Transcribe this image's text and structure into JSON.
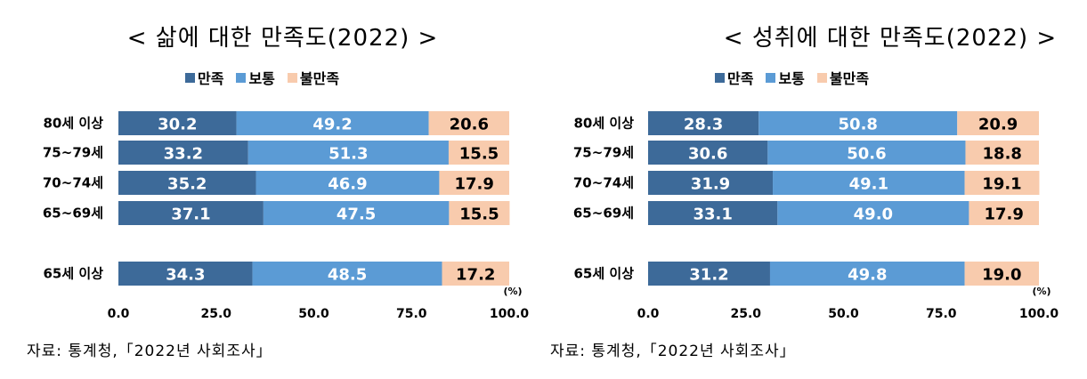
{
  "colors": {
    "satisfied": "#3d6a99",
    "normal": "#5b9bd5",
    "dissatisfied": "#f8cbad",
    "label_light": "#ffffff",
    "label_dark": "#000000"
  },
  "legend": [
    "만족",
    "보통",
    "불만족"
  ],
  "source": "자료: 통계청,「2022년 사회조사」",
  "chart_data": [
    {
      "type": "bar",
      "orientation": "horizontal-stacked",
      "title": "< 삶에 대한 만족도(2022) >",
      "unit": "(%)",
      "categories": [
        "80세 이상",
        "75~79세",
        "70~74세",
        "65~69세",
        "65세 이상"
      ],
      "series": [
        {
          "name": "만족",
          "values": [
            30.2,
            33.2,
            35.2,
            37.1,
            34.3
          ]
        },
        {
          "name": "보통",
          "values": [
            49.2,
            51.3,
            46.9,
            47.5,
            48.5
          ]
        },
        {
          "name": "불만족",
          "values": [
            20.6,
            15.5,
            17.9,
            15.5,
            17.2
          ]
        }
      ],
      "xlim": [
        0,
        100
      ],
      "x_ticks": [
        "0.0",
        "25.0",
        "50.0",
        "75.0",
        "100.0"
      ],
      "legend_position": "top"
    },
    {
      "type": "bar",
      "orientation": "horizontal-stacked",
      "title": "< 성취에 대한 만족도(2022) >",
      "unit": "(%)",
      "categories": [
        "80세 이상",
        "75~79세",
        "70~74세",
        "65~69세",
        "65세 이상"
      ],
      "series": [
        {
          "name": "만족",
          "values": [
            28.3,
            30.6,
            31.9,
            33.1,
            31.2
          ]
        },
        {
          "name": "보통",
          "values": [
            50.8,
            50.6,
            49.1,
            49.0,
            49.8
          ]
        },
        {
          "name": "불만족",
          "values": [
            20.9,
            18.8,
            19.1,
            17.9,
            19.0
          ]
        }
      ],
      "xlim": [
        0,
        100
      ],
      "x_ticks": [
        "0.0",
        "25.0",
        "50.0",
        "75.0",
        "100.0"
      ],
      "legend_position": "top"
    }
  ]
}
